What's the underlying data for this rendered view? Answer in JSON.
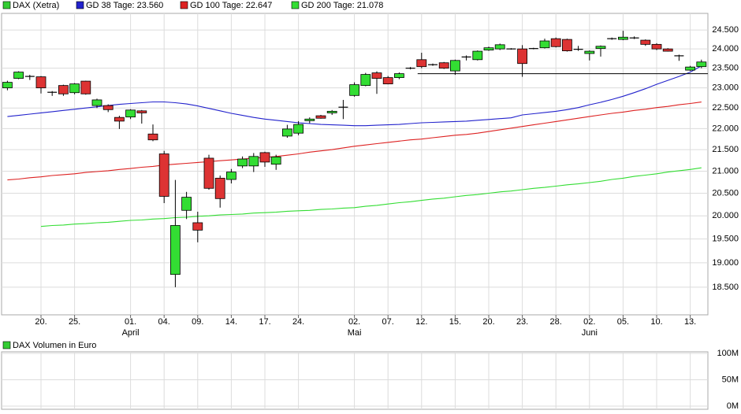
{
  "chart_data": [
    {
      "type": "candlestick",
      "name": "DAX (Xetra)",
      "legend_color": "#33cc33",
      "categories": [
        null,
        null,
        null,
        "20.",
        null,
        null,
        "25.",
        null,
        null,
        null,
        null,
        "01.",
        null,
        null,
        "04.",
        null,
        null,
        "09.",
        null,
        null,
        "14.",
        null,
        null,
        "17.",
        null,
        null,
        "24.",
        null,
        null,
        null,
        null,
        "02.",
        null,
        null,
        "07.",
        null,
        null,
        "12.",
        null,
        null,
        "15.",
        null,
        null,
        "20.",
        null,
        null,
        "23.",
        null,
        null,
        "28.",
        null,
        null,
        "02.",
        null,
        null,
        "05.",
        null,
        null,
        "10.",
        null,
        null,
        "13.",
        null
      ],
      "months": [
        null,
        null,
        null,
        null,
        null,
        null,
        null,
        null,
        null,
        null,
        null,
        "April",
        null,
        null,
        null,
        null,
        null,
        null,
        null,
        null,
        null,
        null,
        null,
        null,
        null,
        null,
        null,
        null,
        null,
        null,
        null,
        "Mai",
        null,
        null,
        null,
        null,
        null,
        null,
        null,
        null,
        null,
        null,
        null,
        null,
        null,
        null,
        null,
        null,
        null,
        null,
        null,
        null,
        "Juni",
        null,
        null,
        null,
        null,
        null,
        null,
        null,
        null,
        null,
        null
      ],
      "open": [
        23000,
        23240,
        23290,
        23280,
        22890,
        23060,
        22880,
        23170,
        22560,
        22560,
        22270,
        22280,
        22430,
        21870,
        21400,
        18760,
        20120,
        19850,
        21300,
        20840,
        20810,
        21120,
        21120,
        21430,
        21160,
        21820,
        21890,
        22190,
        22310,
        22380,
        22520,
        22810,
        23060,
        23380,
        23260,
        23260,
        23500,
        23720,
        23590,
        23640,
        23430,
        23790,
        23720,
        23970,
        24000,
        24000,
        24000,
        24010,
        24030,
        24270,
        24250,
        23990,
        23880,
        24010,
        24270,
        24250,
        24290,
        24230,
        24120,
        24000,
        23820,
        23450,
        23540
      ],
      "high": [
        23180,
        23420,
        23330,
        23300,
        22920,
        23080,
        23120,
        23180,
        22730,
        22590,
        22310,
        22470,
        22450,
        22100,
        21470,
        20800,
        20530,
        20090,
        21380,
        20900,
        21050,
        21340,
        21420,
        21450,
        21380,
        22090,
        22180,
        22270,
        22330,
        22450,
        22700,
        23140,
        23380,
        23420,
        23300,
        23390,
        23530,
        23900,
        23620,
        23660,
        23720,
        23830,
        23960,
        24060,
        24140,
        24020,
        24100,
        24030,
        24270,
        24300,
        24270,
        24080,
        23960,
        24090,
        24300,
        24480,
        24330,
        24250,
        24150,
        24020,
        23850,
        23560,
        23720
      ],
      "low": [
        22940,
        23220,
        23200,
        22860,
        22800,
        22800,
        22840,
        22830,
        22500,
        22400,
        21990,
        22230,
        22120,
        21700,
        20280,
        18500,
        19930,
        19430,
        20580,
        20180,
        20720,
        21070,
        20980,
        21100,
        21030,
        21780,
        21840,
        22130,
        22240,
        22330,
        22230,
        22780,
        23040,
        22850,
        23090,
        23220,
        23470,
        23500,
        23560,
        23480,
        23330,
        23700,
        23700,
        23950,
        23970,
        23980,
        23280,
        23990,
        24010,
        24040,
        23930,
        23950,
        23700,
        23800,
        24240,
        24230,
        24260,
        24080,
        23970,
        23930,
        23690,
        23430,
        23500
      ],
      "close": [
        23140,
        23400,
        23290,
        23000,
        22890,
        22850,
        23100,
        22850,
        22700,
        22460,
        22180,
        22450,
        22380,
        21730,
        20430,
        19790,
        20410,
        19690,
        20610,
        20380,
        20980,
        21280,
        21340,
        21210,
        21330,
        21990,
        22100,
        22230,
        22250,
        22420,
        22520,
        23080,
        23340,
        23240,
        23100,
        23360,
        23500,
        23540,
        23590,
        23500,
        23700,
        23790,
        23940,
        24030,
        24110,
        24000,
        23620,
        24010,
        24210,
        24060,
        23950,
        23990,
        23940,
        24070,
        24270,
        24310,
        24290,
        24120,
        24000,
        23940,
        23820,
        23530,
        23660
      ],
      "up_color": "#33dd33",
      "down_color": "#dd3333",
      "doji_color": "#000000",
      "series": [
        {
          "name": "GD 38 Tage: 23.560",
          "color": "#2222cc",
          "values": [
            22290,
            22320,
            22350,
            22380,
            22410,
            22440,
            22470,
            22500,
            22530,
            22560,
            22590,
            22610,
            22630,
            22650,
            22650,
            22630,
            22600,
            22550,
            22490,
            22430,
            22370,
            22320,
            22270,
            22230,
            22200,
            22170,
            22140,
            22120,
            22100,
            22090,
            22080,
            22070,
            22070,
            22080,
            22090,
            22100,
            22120,
            22140,
            22150,
            22160,
            22170,
            22180,
            22200,
            22220,
            22240,
            22260,
            22330,
            22360,
            22390,
            22420,
            22460,
            22510,
            22580,
            22640,
            22710,
            22790,
            22880,
            22980,
            23090,
            23190,
            23290,
            23400,
            23560
          ]
        },
        {
          "name": "GD 100 Tage: 22.647",
          "color": "#dd2222",
          "values": [
            20800,
            20820,
            20850,
            20870,
            20900,
            20920,
            20940,
            20970,
            20990,
            21010,
            21040,
            21060,
            21090,
            21110,
            21140,
            21160,
            21180,
            21200,
            21220,
            21240,
            21260,
            21280,
            21300,
            21320,
            21340,
            21370,
            21400,
            21440,
            21470,
            21500,
            21540,
            21580,
            21610,
            21640,
            21670,
            21700,
            21730,
            21750,
            21780,
            21810,
            21840,
            21860,
            21890,
            21930,
            21970,
            22010,
            22050,
            22090,
            22130,
            22170,
            22210,
            22250,
            22290,
            22330,
            22370,
            22400,
            22440,
            22470,
            22510,
            22540,
            22580,
            22610,
            22647
          ]
        },
        {
          "name": "GD 200 Tage: 21.078",
          "color": "#33dd33",
          "values": [
            null,
            null,
            null,
            19770,
            19790,
            19800,
            19820,
            19830,
            19850,
            19860,
            19880,
            19900,
            19910,
            19930,
            19940,
            19960,
            19970,
            19990,
            20000,
            20020,
            20030,
            20040,
            20060,
            20070,
            20080,
            20100,
            20110,
            20120,
            20140,
            20150,
            20170,
            20180,
            20210,
            20230,
            20260,
            20290,
            20310,
            20340,
            20370,
            20390,
            20420,
            20450,
            20470,
            20500,
            20530,
            20550,
            20580,
            20610,
            20630,
            20660,
            20690,
            20710,
            20740,
            20770,
            20810,
            20840,
            20880,
            20910,
            20940,
            20980,
            21010,
            21040,
            21078
          ]
        }
      ],
      "hline": 23360,
      "hline_color": "#000000",
      "ylim": [
        17950,
        24950
      ],
      "log_scale": true,
      "grid": true,
      "yticks": [
        {
          "value": 18500,
          "label": "18.500"
        },
        {
          "value": 19000,
          "label": "19.000"
        },
        {
          "value": 19500,
          "label": "19.500"
        },
        {
          "value": 20000,
          "label": "20.000"
        },
        {
          "value": 20500,
          "label": "20.500"
        },
        {
          "value": 21000,
          "label": "21.000"
        },
        {
          "value": 21500,
          "label": "21.500"
        },
        {
          "value": 22000,
          "label": "22.000"
        },
        {
          "value": 22500,
          "label": "22.500"
        },
        {
          "value": 23000,
          "label": "23.000"
        },
        {
          "value": 23500,
          "label": "23.500"
        },
        {
          "value": 24000,
          "label": "24.000"
        },
        {
          "value": 24500,
          "label": "24.500"
        }
      ]
    },
    {
      "type": "bar",
      "series": [
        {
          "name": "DAX Volumen in Euro",
          "color": "#33cc33"
        }
      ],
      "ylim": [
        -6000000,
        103000000
      ],
      "grid": true,
      "yticks": [
        {
          "value": 0,
          "label": "0M"
        },
        {
          "value": 50000000,
          "label": "50M"
        },
        {
          "value": 100000000,
          "label": "100M"
        }
      ]
    }
  ]
}
